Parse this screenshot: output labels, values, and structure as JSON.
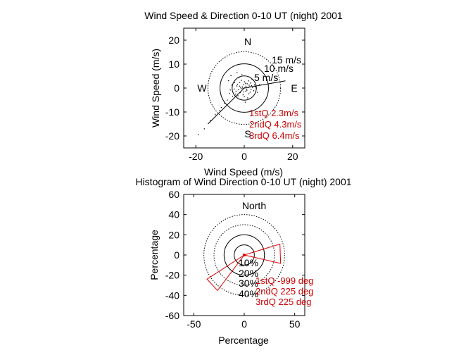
{
  "chart_data": [
    {
      "type": "scatter",
      "title": "Wind Speed & Direction 0-10 UT (night) 2001",
      "xlabel": "Wind Speed (m/s)",
      "ylabel": "Wind Speed (m/s)",
      "xlim": [
        -25,
        25
      ],
      "ylim": [
        -25,
        25
      ],
      "xticks": [
        -20,
        0,
        20
      ],
      "yticks": [
        -20,
        -10,
        0,
        10,
        20
      ],
      "xtick_labels": [
        "-20",
        "0",
        "20"
      ],
      "ytick_labels": [
        "-20",
        "-10",
        "0",
        "10",
        "20"
      ],
      "rings": [
        {
          "radius": 5,
          "label": "5 m/s",
          "style": "solid"
        },
        {
          "radius": 10,
          "label": "10 m/s",
          "style": "solid"
        },
        {
          "radius": 15,
          "label": "15 m/s",
          "style": "dotted"
        }
      ],
      "compass": {
        "n": "N",
        "s": "S",
        "e": "E",
        "w": "W"
      },
      "quartile_labels": [
        "1stQ 2.3m/s",
        "2ndQ 4.3m/s",
        "3rdQ 6.4m/s"
      ],
      "mean_vector": [
        {
          "from": [
            -15,
            -15
          ],
          "to": [
            17,
            3
          ]
        }
      ],
      "points": [
        [
          -1.5,
          0.3
        ],
        [
          -0.8,
          0.5
        ],
        [
          0.2,
          0.1
        ],
        [
          0.9,
          -0.4
        ],
        [
          1.6,
          0.2
        ],
        [
          2.3,
          0.6
        ],
        [
          2.8,
          -0.5
        ],
        [
          3.4,
          0.3
        ],
        [
          -2.4,
          -0.7
        ],
        [
          -3.1,
          0.9
        ],
        [
          -0.3,
          1.4
        ],
        [
          0.6,
          -1.3
        ],
        [
          1.2,
          1.8
        ],
        [
          -1.7,
          -1.9
        ],
        [
          -2.8,
          1.6
        ],
        [
          3.9,
          -1.1
        ],
        [
          4.6,
          0.5
        ],
        [
          -4.2,
          -0.4
        ],
        [
          0.1,
          2.6
        ],
        [
          -0.5,
          -2.8
        ],
        [
          1.9,
          -2.4
        ],
        [
          -1.2,
          3.2
        ],
        [
          2.6,
          2.1
        ],
        [
          -3.6,
          -2.5
        ],
        [
          -5.1,
          1.2
        ],
        [
          5.4,
          -1.8
        ],
        [
          -2.2,
          4.3
        ],
        [
          1.4,
          -4.1
        ],
        [
          -4.8,
          -3.4
        ],
        [
          3.2,
          3.6
        ],
        [
          -6.1,
          -2.2
        ],
        [
          -1.0,
          5.6
        ],
        [
          0.4,
          -5.9
        ],
        [
          -7.0,
          -5.0
        ],
        [
          -6.5,
          3.1
        ],
        [
          6.3,
          1.4
        ],
        [
          -8.2,
          -6.3
        ],
        [
          -3.0,
          6.4
        ],
        [
          -5.5,
          5.2
        ],
        [
          -9.5,
          -8.1
        ],
        [
          -10.2,
          -9.4
        ],
        [
          -12.0,
          -11.0
        ],
        [
          -14.0,
          -13.5
        ],
        [
          -16.5,
          -17.0
        ],
        [
          -19.0,
          -19.5
        ],
        [
          -0.6,
          0.0
        ],
        [
          0.7,
          0.8
        ],
        [
          -1.3,
          -0.2
        ],
        [
          1.1,
          -0.9
        ],
        [
          2.0,
          1.2
        ],
        [
          -2.0,
          0.8
        ],
        [
          3.0,
          1.0
        ],
        [
          -0.2,
          -1.6
        ],
        [
          0.5,
          2.0
        ],
        [
          -3.4,
          -1.3
        ],
        [
          4.2,
          1.3
        ],
        [
          -1.9,
          2.4
        ],
        [
          2.4,
          -1.7
        ],
        [
          -4.0,
          2.3
        ],
        [
          1.8,
          3.0
        ],
        [
          -2.6,
          -3.2
        ],
        [
          5.0,
          0.0
        ],
        [
          -5.8,
          -0.8
        ],
        [
          0.0,
          -3.6
        ]
      ]
    },
    {
      "type": "rose",
      "title": "Histogram of Wind Direction 0-10 UT (night) 2001",
      "xlabel": "Percentage",
      "ylabel": "Percentage",
      "xlim": [
        -60,
        60
      ],
      "ylim": [
        -60,
        60
      ],
      "xticks": [
        -50,
        0,
        50
      ],
      "yticks": [
        -60,
        -40,
        -20,
        0,
        20,
        40,
        60
      ],
      "xtick_labels": [
        "-50",
        "0",
        "50"
      ],
      "ytick_labels": [
        "-60",
        "-40",
        "-20",
        "0",
        "20",
        "40",
        "60"
      ],
      "rings": [
        {
          "radius": 10,
          "label": "10%",
          "style": "solid"
        },
        {
          "radius": 20,
          "label": "20%",
          "style": "solid"
        },
        {
          "radius": 30,
          "label": "30%",
          "style": "dotted"
        },
        {
          "radius": 40,
          "label": "40%",
          "style": "dotted"
        }
      ],
      "north_label": "North",
      "wedges": [
        {
          "start_deg": 73,
          "end_deg": 103,
          "value": 37
        },
        {
          "start_deg": 217,
          "end_deg": 237,
          "value": 44
        }
      ],
      "quartile_labels": [
        "1stQ -999 deg",
        "2ndQ 225 deg",
        "3rdQ 225 deg"
      ]
    }
  ]
}
